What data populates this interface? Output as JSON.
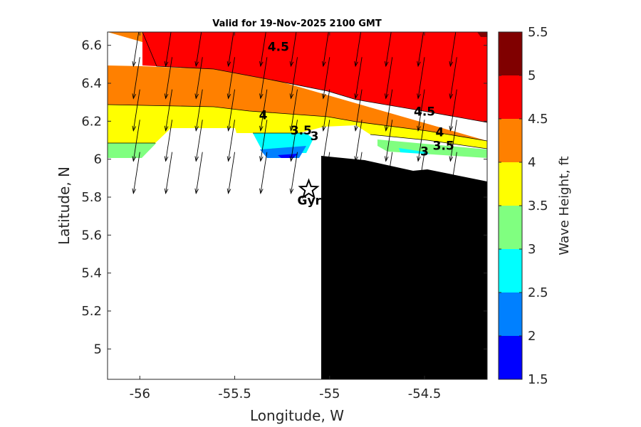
{
  "chart_data": {
    "type": "contour",
    "title": "Valid for 19-Nov-2025 2100 GMT",
    "xlabel": "Longitude, W",
    "ylabel": "Latitude, N",
    "xlim": [
      -56.17,
      -54.17
    ],
    "ylim": [
      4.84,
      6.67
    ],
    "xticks": [
      -56,
      -55.5,
      -55,
      -54.5
    ],
    "xtick_labels": [
      "-56",
      "-55.5",
      "-55",
      "-54.5"
    ],
    "yticks": [
      5,
      5.2,
      5.4,
      5.6,
      5.8,
      6,
      6.2,
      6.4,
      6.6
    ],
    "ytick_labels": [
      "5",
      "5.2",
      "5.4",
      "5.6",
      "5.8",
      "6",
      "6.2",
      "6.4",
      "6.6"
    ],
    "colorbar": {
      "label": "Wave Height, ft",
      "levels": [
        1.5,
        2,
        2.5,
        3,
        3.5,
        4,
        4.5,
        5,
        5.5
      ],
      "tick_labels": [
        "1.5",
        "2",
        "2.5",
        "3",
        "3.5",
        "4",
        "4.5",
        "5",
        "5.5"
      ],
      "colors": [
        "#0000ff",
        "#0080ff",
        "#00ffff",
        "#80ff80",
        "#ffff00",
        "#ff8000",
        "#ff0000",
        "#800000"
      ]
    },
    "contour_labels": [
      {
        "text": "4.5",
        "lon": -55.27,
        "lat": 6.57
      },
      {
        "text": "4.5",
        "lon": -54.5,
        "lat": 6.23
      },
      {
        "text": "4",
        "lon": -55.35,
        "lat": 6.21
      },
      {
        "text": "4",
        "lon": -54.42,
        "lat": 6.12
      },
      {
        "text": "3.5",
        "lon": -55.15,
        "lat": 6.13
      },
      {
        "text": "3.5",
        "lon": -54.4,
        "lat": 6.05
      },
      {
        "text": "3",
        "lon": -55.08,
        "lat": 6.1
      },
      {
        "text": "3",
        "lon": -54.5,
        "lat": 6.02
      }
    ],
    "station": {
      "label": "Gyr",
      "lon": -55.11,
      "lat": 5.84
    },
    "arrow_grid": {
      "lons": [
        -56,
        -55.83,
        -55.67,
        -55.5,
        -55.33,
        -55.17,
        -55,
        -54.83,
        -54.67,
        -54.5,
        -54.33
      ],
      "lats": [
        6.67,
        6.5,
        6.33,
        6.17,
        6.0
      ]
    },
    "land_color": "#000000"
  }
}
